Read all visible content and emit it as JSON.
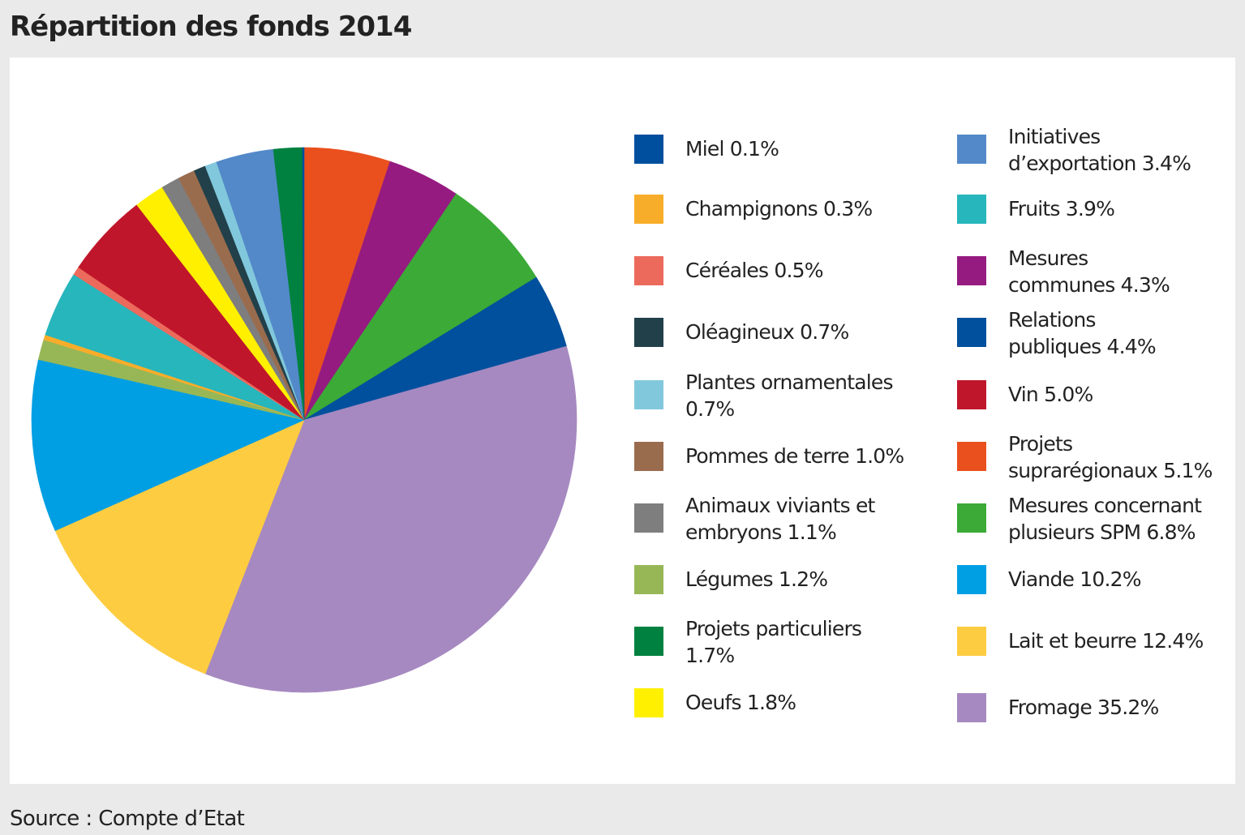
{
  "title": "Répartition des fonds 2014",
  "source": "Source : Compte d’Etat",
  "chart_data": {
    "type": "pie",
    "unit": "%",
    "slices": [
      {
        "label": "Miel 0.1%",
        "name": "Miel",
        "value": 0.1,
        "color": "#004f9f"
      },
      {
        "label": "Champignons 0.3%",
        "name": "Champignons",
        "value": 0.3,
        "color": "#f8ad2a"
      },
      {
        "label": "Céréales 0.5%",
        "name": "Céréales",
        "value": 0.5,
        "color": "#ec6a5c"
      },
      {
        "label": "Oléagineux 0.7%",
        "name": "Oléagineux",
        "value": 0.7,
        "color": "#21404a"
      },
      {
        "label": "Plantes ornamentales\n0.7%",
        "name": "Plantes ornamentales",
        "value": 0.7,
        "color": "#82c8dc"
      },
      {
        "label": "Pommes de terre 1.0%",
        "name": "Pommes de terre",
        "value": 1.0,
        "color": "#9a6c4e"
      },
      {
        "label": "Animaux viviants et\nembryons 1.1%",
        "name": "Animaux viviants et embryons",
        "value": 1.1,
        "color": "#7e7e7e"
      },
      {
        "label": "Légumes 1.2%",
        "name": "Légumes",
        "value": 1.2,
        "color": "#97b756"
      },
      {
        "label": "Projets particuliers\n1.7%",
        "name": "Projets particuliers",
        "value": 1.7,
        "color": "#00813f"
      },
      {
        "label": "Oeufs 1.8%",
        "name": "Oeufs",
        "value": 1.8,
        "color": "#fff000"
      },
      {
        "label": "Initiatives\nd’exportation 3.4%",
        "name": "Initiatives d’exportation",
        "value": 3.4,
        "color": "#5389c8"
      },
      {
        "label": "Fruits 3.9%",
        "name": "Fruits",
        "value": 3.9,
        "color": "#26b6bc"
      },
      {
        "label": "Mesures\ncommunes 4.3%",
        "name": "Mesures communes",
        "value": 4.3,
        "color": "#951b81"
      },
      {
        "label": "Relations\npubliques 4.4%",
        "name": "Relations publiques",
        "value": 4.4,
        "color": "#00509d"
      },
      {
        "label": "Vin 5.0%",
        "name": "Vin",
        "value": 5.0,
        "color": "#c0162b"
      },
      {
        "label": "Projets\nsuprarégionaux 5.1%",
        "name": "Projets suprarégionaux",
        "value": 5.1,
        "color": "#e9501e"
      },
      {
        "label": "Mesures concernant\nplusieurs SPM 6.8%",
        "name": "Mesures concernant plusieurs SPM",
        "value": 6.8,
        "color": "#3baa36"
      },
      {
        "label": "Viande 10.2%",
        "name": "Viande",
        "value": 10.2,
        "color": "#009fe3"
      },
      {
        "label": "Lait et beurre 12.4%",
        "name": "Lait et beurre",
        "value": 12.4,
        "color": "#fecc41"
      },
      {
        "label": "Fromage 35.2%",
        "name": "Fromage",
        "value": 35.2,
        "color": "#a689c1"
      }
    ],
    "pie_order_clockwise_from_top": [
      "Projets suprarégionaux",
      "Mesures communes",
      "Mesures concernant plusieurs SPM",
      "Relations publiques",
      "Fromage",
      "Lait et beurre",
      "Viande",
      "Légumes",
      "Champignons",
      "Fruits",
      "Céréales",
      "Vin",
      "Oeufs",
      "Animaux viviants et embryons",
      "Pommes de terre",
      "Oléagineux",
      "Plantes ornamentales",
      "Initiatives d’exportation",
      "Projets particuliers",
      "Miel"
    ],
    "legend_placement": "right, two columns"
  }
}
